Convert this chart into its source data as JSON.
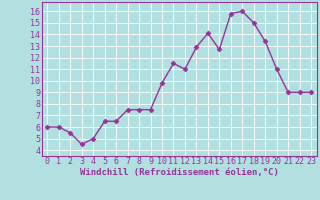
{
  "x": [
    0,
    1,
    2,
    3,
    4,
    5,
    6,
    7,
    8,
    9,
    10,
    11,
    12,
    13,
    14,
    15,
    16,
    17,
    18,
    19,
    20,
    21,
    22,
    23
  ],
  "y": [
    6.0,
    6.0,
    5.5,
    4.5,
    5.0,
    6.5,
    6.5,
    7.5,
    7.5,
    7.5,
    9.8,
    11.5,
    11.0,
    12.9,
    14.1,
    12.7,
    15.8,
    16.0,
    15.0,
    13.4,
    11.0,
    9.0,
    9.0,
    9.0
  ],
  "line_color": "#993399",
  "marker": "D",
  "markersize": 2.5,
  "linewidth": 1.0,
  "background_color": "#b2e0e0",
  "grid_color": "#ffffff",
  "xlabel": "Windchill (Refroidissement éolien,°C)",
  "xlabel_fontsize": 6.5,
  "ylabel_ticks": [
    4,
    5,
    6,
    7,
    8,
    9,
    10,
    11,
    12,
    13,
    14,
    15,
    16
  ],
  "ylim": [
    3.5,
    16.8
  ],
  "xlim": [
    -0.5,
    23.5
  ],
  "tick_fontsize": 6.0,
  "tick_color": "#993399",
  "axis_label_color": "#993399",
  "spine_color": "#993399"
}
